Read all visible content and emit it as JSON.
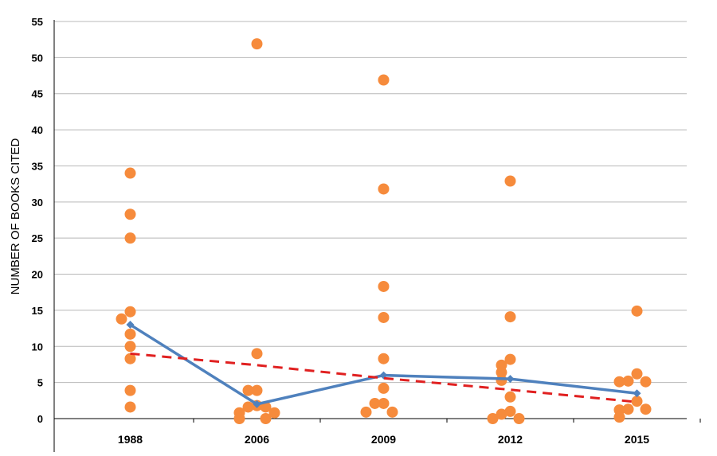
{
  "chart_data": {
    "type": "scatter",
    "ylabel": "NUMBER OF BOOKS CITED",
    "xlabel": "",
    "title": "",
    "ylim": [
      0,
      55
    ],
    "yticks": [
      0,
      5,
      10,
      15,
      20,
      25,
      30,
      35,
      40,
      45,
      50,
      55
    ],
    "grid": true,
    "categories": [
      "1988",
      "2006",
      "2009",
      "2012",
      "2015"
    ],
    "points": [
      {
        "category": "1988",
        "values": [
          34,
          28.3,
          25,
          14.8,
          13.8,
          11.7,
          10,
          8.3,
          3.9,
          1.6
        ]
      },
      {
        "category": "2006",
        "values": [
          51.9,
          9,
          3.9,
          3.9,
          1.8,
          1.6,
          1.6,
          0.8,
          0.8,
          0,
          0
        ]
      },
      {
        "category": "2009",
        "values": [
          46.9,
          31.8,
          18.3,
          14,
          8.3,
          4.2,
          2.1,
          2.1,
          0.9,
          0.9
        ]
      },
      {
        "category": "2012",
        "values": [
          32.9,
          14.1,
          8.2,
          7.4,
          6.4,
          5.3,
          3,
          1,
          0.6,
          0,
          0
        ]
      },
      {
        "category": "2015",
        "values": [
          14.9,
          6.2,
          5.2,
          5.1,
          5.1,
          2.4,
          1.3,
          1.3,
          1.2,
          0.2
        ]
      }
    ],
    "series": [
      {
        "values": [
          13,
          2,
          6,
          5.5,
          3.5
        ],
        "color": "#4f81bd",
        "style": "solid",
        "marker": "diamond"
      },
      {
        "values": [
          9,
          7.4,
          5.6,
          4,
          2.3
        ],
        "color": "#e02020",
        "style": "dashed"
      }
    ],
    "point_color": "#f68b3c"
  }
}
